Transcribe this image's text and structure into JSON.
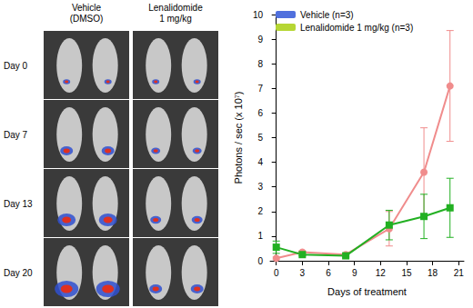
{
  "image_panel": {
    "columns": [
      [
        "Vehicle",
        "(DMSO)"
      ],
      [
        "Lenalidomide",
        "1 mg/kg"
      ]
    ],
    "rows": [
      "Day 0",
      "Day 7",
      "Day 13",
      "Day 20"
    ]
  },
  "chart_data": {
    "type": "line",
    "ylabel": "Photons / sec",
    "ylabel_unit": "(x 10⁷)",
    "xlabel": "Days of treatment",
    "xlim": [
      -0.7,
      21.6
    ],
    "xticks": [
      0,
      3,
      6,
      9,
      12,
      15,
      18,
      21
    ],
    "ylim": [
      0,
      10
    ],
    "yticks": [
      0,
      1,
      2,
      3,
      4,
      5,
      6,
      7,
      8,
      9,
      10
    ],
    "grid": false,
    "legend": "upper left",
    "series": [
      {
        "name": "Vehicle (n=3)",
        "color": "#f08c8c",
        "marker": "circle",
        "x": [
          0,
          3,
          8,
          13,
          17,
          20
        ],
        "values": [
          0.1,
          0.35,
          0.25,
          1.3,
          3.6,
          7.1
        ],
        "errors": [
          0.05,
          0.05,
          0.05,
          0.7,
          1.8,
          2.25
        ]
      },
      {
        "name": "Lenalidomide 1 mg/kg (n=3)",
        "color": "#22b022",
        "marker": "square",
        "x": [
          0,
          3,
          8,
          13,
          17,
          20
        ],
        "values": [
          0.55,
          0.25,
          0.2,
          1.45,
          1.8,
          2.15
        ],
        "errors": [
          0.25,
          0.05,
          0.05,
          0.6,
          0.9,
          1.2
        ]
      }
    ]
  }
}
